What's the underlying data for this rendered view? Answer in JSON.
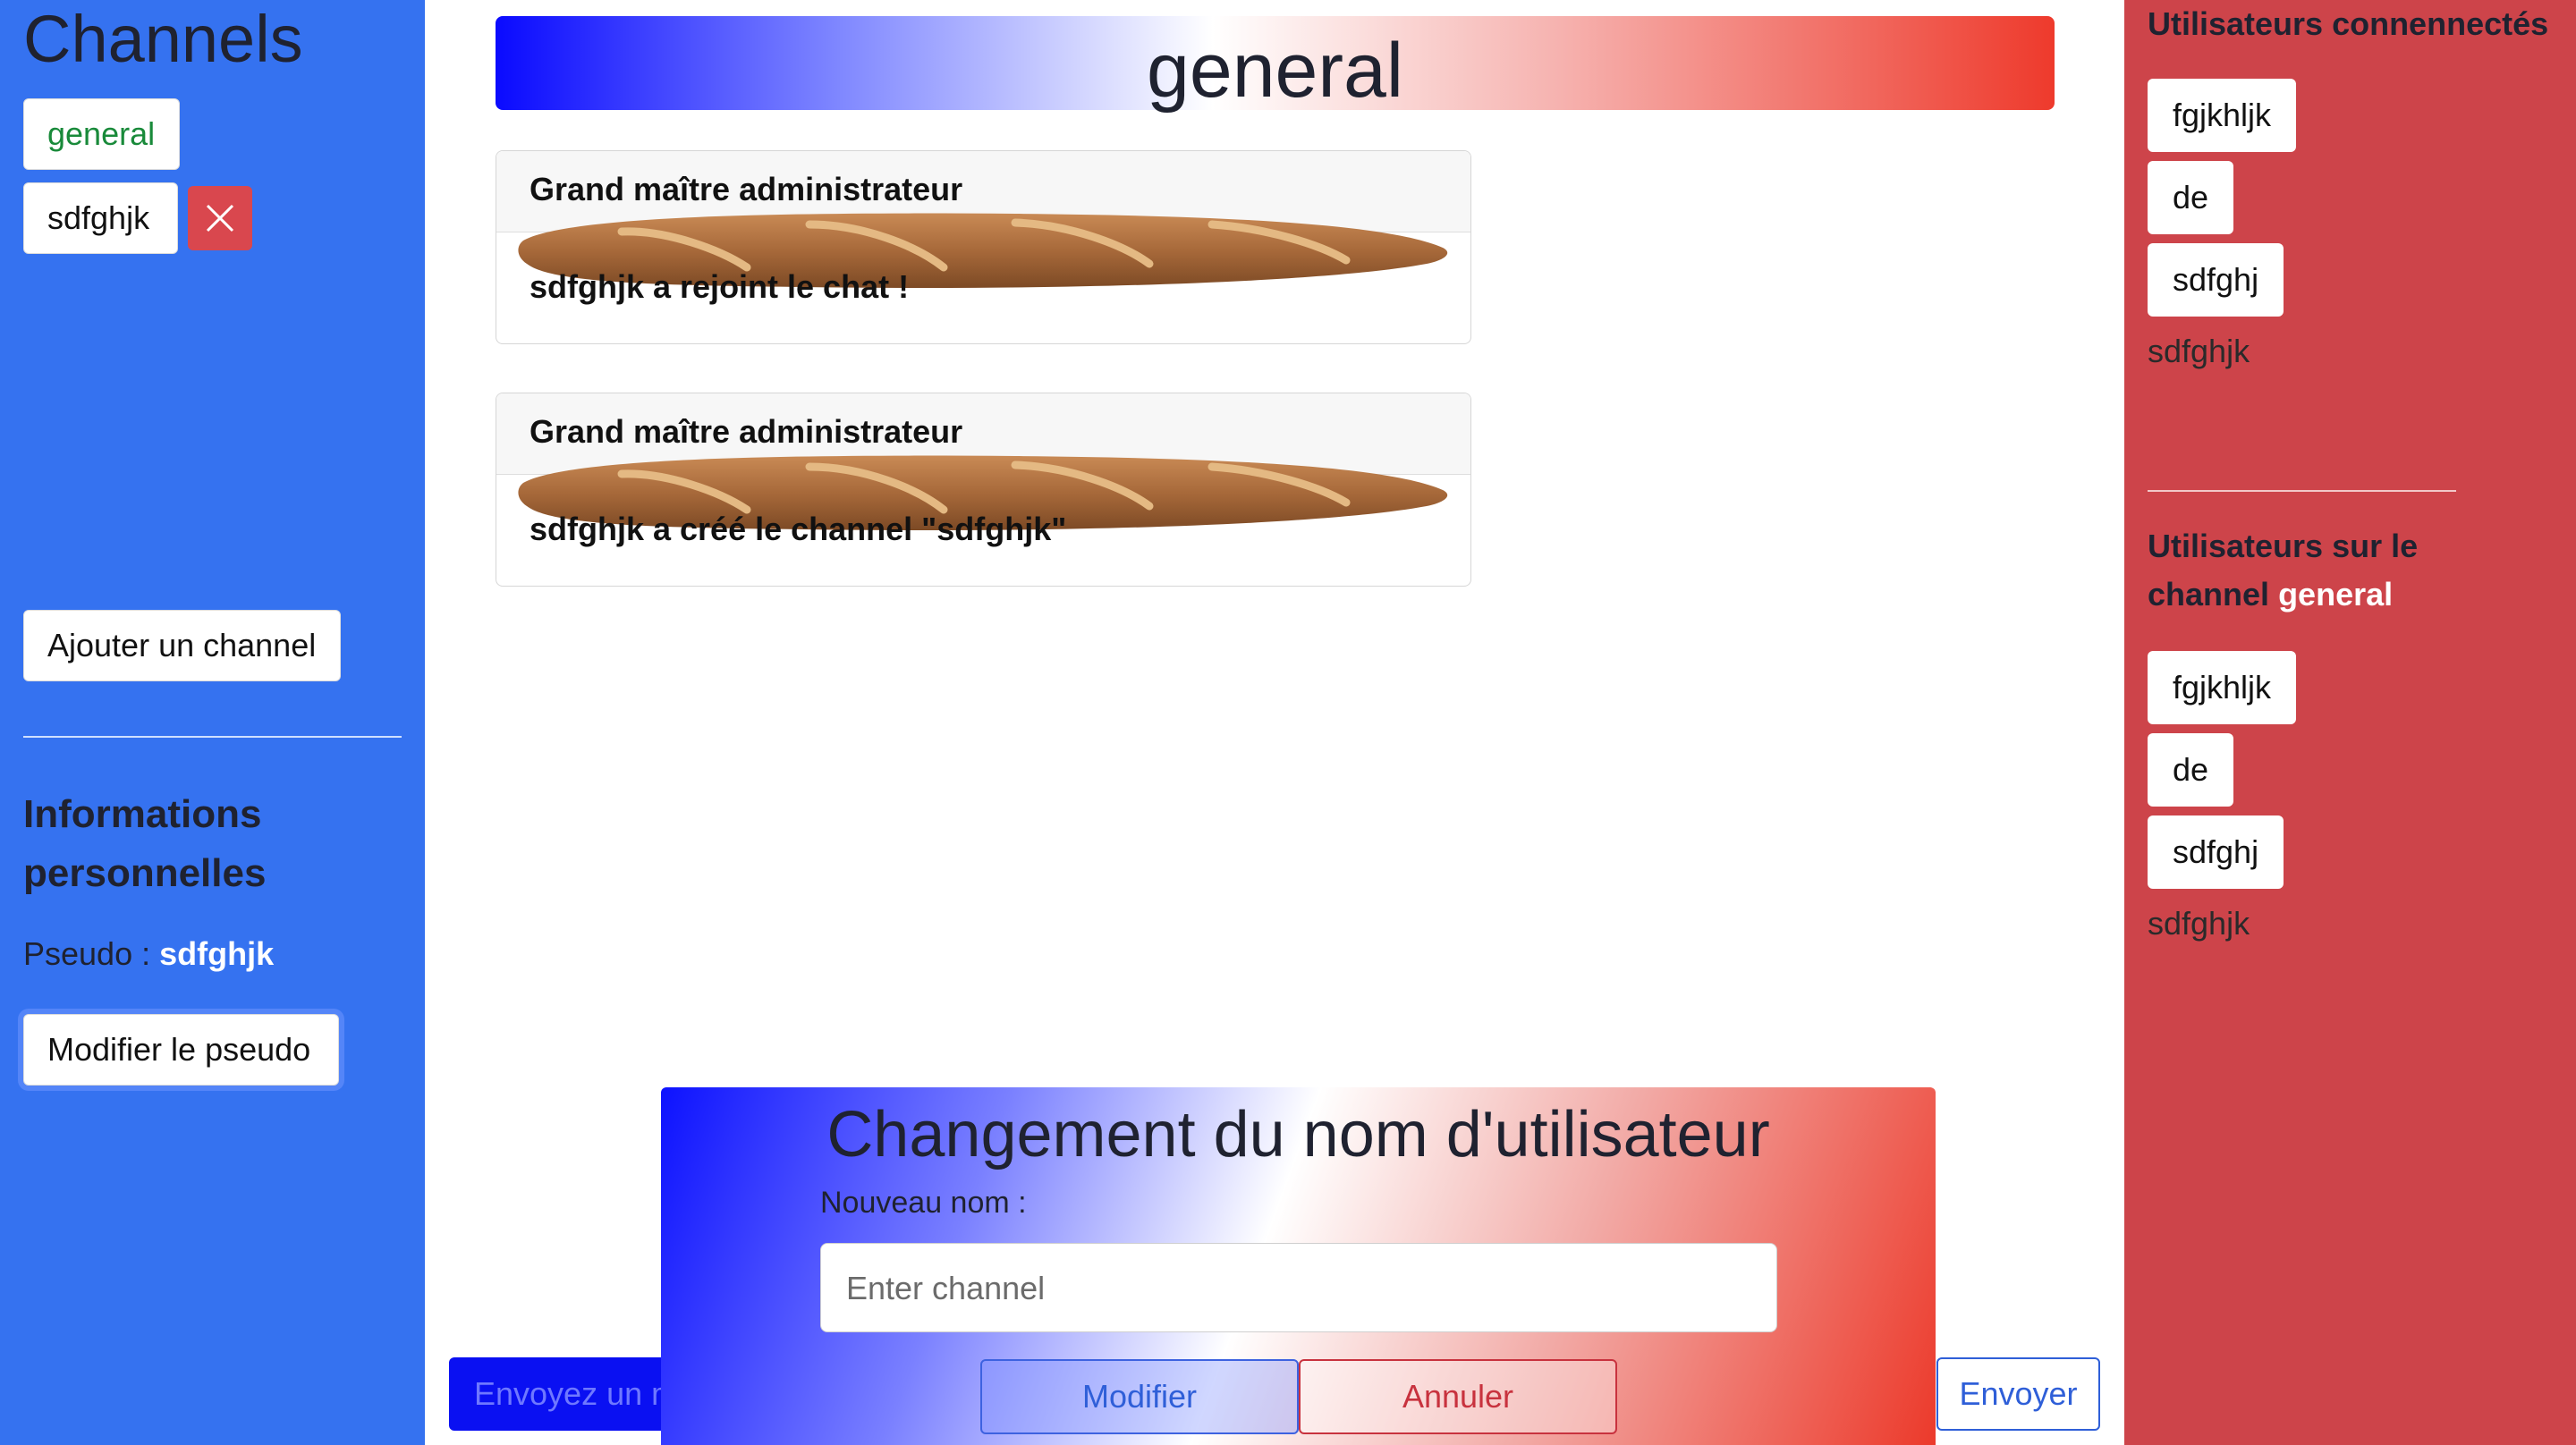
{
  "sidebar": {
    "title": "Channels",
    "channels": [
      {
        "label": "general"
      },
      {
        "label": "sdfghjk"
      }
    ],
    "add_channel_label": "Ajouter un channel",
    "info_title": "Informations personnelles",
    "pseudo_label": "Pseudo :",
    "pseudo_value": "sdfghjk",
    "modify_pseudo_label": "Modifier le pseudo"
  },
  "header": {
    "channel_name": "general"
  },
  "messages": [
    {
      "author": "Grand maître administrateur",
      "text": "sdfghjk a rejoint le chat !"
    },
    {
      "author": "Grand maître administrateur",
      "text": "sdfghjk a créé le channel \"sdfghjk\""
    }
  ],
  "composer": {
    "placeholder": "Envoyez un m",
    "send_label": "Envoyer"
  },
  "modal": {
    "title": "Changement du nom d'utilisateur",
    "field_label": "Nouveau nom :",
    "placeholder": "Enter channel",
    "modify_label": "Modifier",
    "cancel_label": "Annuler"
  },
  "right_sidebar": {
    "connected_title": "Utilisateurs connennectés",
    "connected_users": [
      "fgjkhljk",
      "de",
      "sdfghj"
    ],
    "connected_self": "sdfghjk",
    "channel_title_prefix": "Utilisateurs sur le channel",
    "channel_title_name": "general",
    "channel_users": [
      "fgjkhljk",
      "de",
      "sdfghj"
    ],
    "channel_self": "sdfghjk"
  },
  "colors": {
    "left_sidebar": "#3572f0",
    "right_sidebar": "#cd444a",
    "delete_button": "#d9474e",
    "send_button_border": "#2f5fd8"
  },
  "icons": {
    "delete": "close-icon",
    "message_decoration": "baguette-image"
  }
}
